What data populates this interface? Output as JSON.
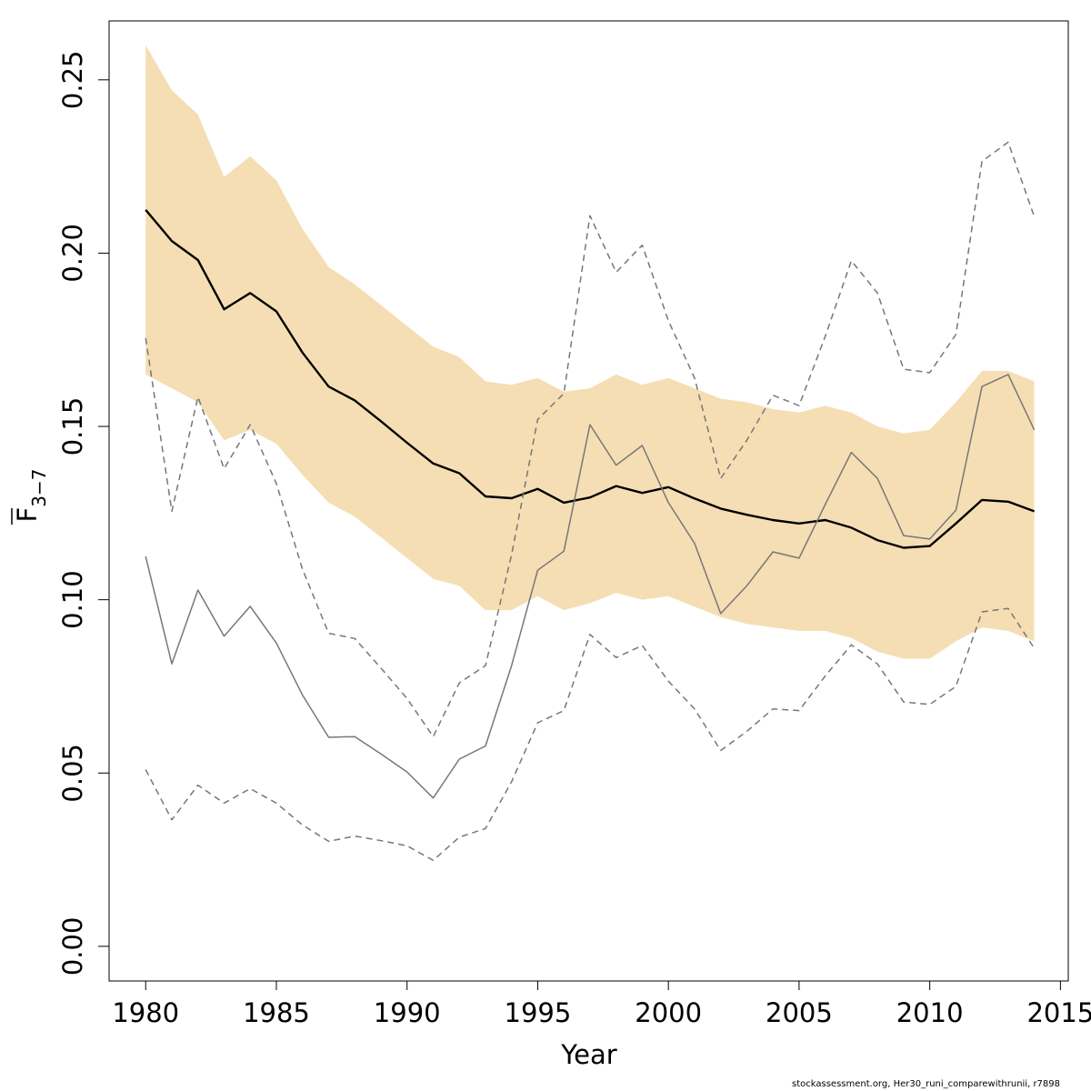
{
  "chart_data": {
    "type": "line",
    "xlabel": "Year",
    "ylabel_main": "F",
    "ylabel_sub": "3−7",
    "xlim": [
      1978.6,
      2015.3
    ],
    "ylim": [
      -0.01,
      0.267
    ],
    "xticks": [
      1980,
      1985,
      1990,
      1995,
      2000,
      2005,
      2010,
      2015
    ],
    "yticks": [
      0.0,
      0.05,
      0.1,
      0.15,
      0.2,
      0.25
    ],
    "grid": false,
    "legend": "none",
    "x": [
      1980,
      1981,
      1982,
      1983,
      1984,
      1985,
      1986,
      1987,
      1988,
      1989,
      1990,
      1991,
      1992,
      1993,
      1994,
      1995,
      1996,
      1997,
      1998,
      1999,
      2000,
      2001,
      2002,
      2003,
      2004,
      2005,
      2006,
      2007,
      2008,
      2009,
      2010,
      2011,
      2012,
      2013,
      2014
    ],
    "band": {
      "color": "#f5deb3",
      "upper": [
        0.26,
        0.247,
        0.24,
        0.222,
        0.228,
        0.221,
        0.207,
        0.196,
        0.191,
        0.185,
        0.179,
        0.173,
        0.17,
        0.163,
        0.162,
        0.164,
        0.16,
        0.161,
        0.165,
        0.162,
        0.164,
        0.161,
        0.158,
        0.157,
        0.155,
        0.154,
        0.156,
        0.154,
        0.15,
        0.148,
        0.149,
        0.157,
        0.166,
        0.166,
        0.163
      ],
      "lower": [
        0.165,
        0.161,
        0.157,
        0.146,
        0.149,
        0.145,
        0.136,
        0.128,
        0.124,
        0.118,
        0.112,
        0.106,
        0.104,
        0.097,
        0.097,
        0.101,
        0.097,
        0.099,
        0.102,
        0.1,
        0.101,
        0.098,
        0.095,
        0.093,
        0.092,
        0.091,
        0.091,
        0.089,
        0.085,
        0.083,
        0.083,
        0.088,
        0.092,
        0.091,
        0.088
      ]
    },
    "series": [
      {
        "style": "thick",
        "color": "#000000",
        "values": [
          0.2125,
          0.2035,
          0.198,
          0.1838,
          0.1885,
          0.1832,
          0.1713,
          0.1615,
          0.1575,
          0.1515,
          0.1453,
          0.1393,
          0.1365,
          0.1298,
          0.1293,
          0.132,
          0.128,
          0.1295,
          0.1328,
          0.1308,
          0.1325,
          0.1292,
          0.1263,
          0.1245,
          0.123,
          0.122,
          0.123,
          0.1208,
          0.1172,
          0.115,
          0.1155,
          0.122,
          0.1288,
          0.1283,
          0.1255
        ]
      },
      {
        "style": "thin",
        "color": "#777777",
        "values": [
          0.1125,
          0.0815,
          0.1028,
          0.0895,
          0.0981,
          0.0875,
          0.0725,
          0.0603,
          0.0605,
          0.0555,
          0.0503,
          0.0428,
          0.054,
          0.0578,
          0.081,
          0.1085,
          0.114,
          0.1505,
          0.1388,
          0.1445,
          0.128,
          0.1163,
          0.096,
          0.104,
          0.1138,
          0.112,
          0.1275,
          0.1425,
          0.135,
          0.1185,
          0.1175,
          0.1258,
          0.1615,
          0.165,
          0.149
        ]
      },
      {
        "style": "dashed",
        "color": "#777777",
        "values": [
          0.1755,
          0.1255,
          0.1585,
          0.1378,
          0.1505,
          0.1335,
          0.1088,
          0.0903,
          0.0888,
          0.0803,
          0.0715,
          0.0605,
          0.076,
          0.081,
          0.113,
          0.152,
          0.1595,
          0.2108,
          0.1945,
          0.2023,
          0.1805,
          0.164,
          0.135,
          0.146,
          0.159,
          0.156,
          0.176,
          0.1978,
          0.1885,
          0.1665,
          0.1655,
          0.1765,
          0.2265,
          0.232,
          0.2105
        ]
      },
      {
        "style": "dashed",
        "color": "#777777",
        "values": [
          0.051,
          0.0365,
          0.0465,
          0.0413,
          0.0455,
          0.0413,
          0.035,
          0.0303,
          0.0318,
          0.0305,
          0.029,
          0.0248,
          0.0315,
          0.034,
          0.0475,
          0.0645,
          0.068,
          0.09,
          0.0833,
          0.0868,
          0.0765,
          0.0685,
          0.0565,
          0.062,
          0.0685,
          0.068,
          0.078,
          0.087,
          0.0815,
          0.0705,
          0.0698,
          0.075,
          0.0965,
          0.0975,
          0.086
        ]
      }
    ]
  },
  "footer": "stockassessment.org, Her30_runi_comparewithrunii, r7898"
}
